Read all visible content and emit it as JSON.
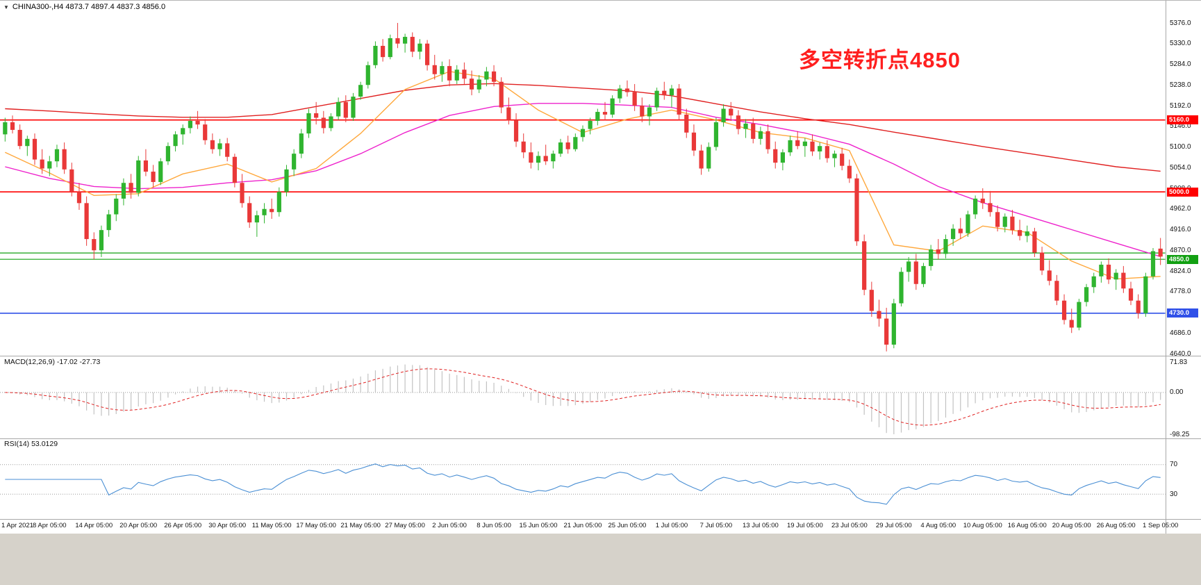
{
  "header": {
    "dropdown_icon": "▼",
    "text": "CHINA300-,H4 4873.7 4897.4 4837.3 4856.0",
    "symbol": "CHINA300-",
    "timeframe": "H4",
    "open": "4873.7",
    "high": "4897.4",
    "low": "4837.3",
    "close": "4856.0"
  },
  "annotation": {
    "text": "多空转折点4850",
    "color": "#ff1f1f"
  },
  "macd_panel": {
    "label_full": "MACD(12,26,9) -17.02 -27.73",
    "name": "MACD(12,26,9)",
    "macd_value": "-17.02",
    "signal_value": "-27.73",
    "axis_labels": [
      "71.83",
      "0.00",
      "-98.25"
    ],
    "histogram_color": "#c2c2c2",
    "signal_color": "#e02020"
  },
  "rsi_panel": {
    "label_full": "RSI(14) 53.0129",
    "name": "RSI(14)",
    "value": "53.0129",
    "axis_labels": [
      "70",
      "30"
    ],
    "line_color": "#4a8fd4"
  },
  "chart_data": {
    "type": "candlestick",
    "title": "CHINA300- H4 chart with MACD and RSI",
    "symbol": "CHINA300-",
    "timeframe": "H4",
    "ylim": [
      4640,
      5376
    ],
    "y_ticks": [
      5376,
      5330,
      5284,
      5238,
      5192,
      5146,
      5100,
      5054,
      5008,
      4962,
      4916,
      4870,
      4824,
      4778,
      4732,
      4686,
      4640
    ],
    "up_color": "#2fb42f",
    "down_color": "#e93838",
    "bars_per_label_interval": 6,
    "x_labels": [
      "1 Apr 2021",
      "8 Apr 05:00",
      "14 Apr 05:00",
      "20 Apr 05:00",
      "26 Apr 05:00",
      "30 Apr 05:00",
      "11 May 05:00",
      "17 May 05:00",
      "21 May 05:00",
      "27 May 05:00",
      "2 Jun 05:00",
      "8 Jun 05:00",
      "15 Jun 05:00",
      "21 Jun 05:00",
      "25 Jun 05:00",
      "1 Jul 05:00",
      "7 Jul 05:00",
      "13 Jul 05:00",
      "19 Jul 05:00",
      "23 Jul 05:00",
      "29 Jul 05:00",
      "4 Aug 05:00",
      "10 Aug 05:00",
      "16 Aug 05:00",
      "20 Aug 05:00",
      "26 Aug 05:00",
      "1 Sep 05:00"
    ],
    "ohlc": [
      [
        5128,
        5165,
        5112,
        5155
      ],
      [
        5155,
        5170,
        5130,
        5138
      ],
      [
        5138,
        5150,
        5095,
        5102
      ],
      [
        5102,
        5125,
        5080,
        5118
      ],
      [
        5118,
        5130,
        5060,
        5072
      ],
      [
        5072,
        5095,
        5040,
        5052
      ],
      [
        5052,
        5080,
        5035,
        5068
      ],
      [
        5068,
        5105,
        5055,
        5095
      ],
      [
        5095,
        5110,
        5040,
        5050
      ],
      [
        5050,
        5065,
        4990,
        5000
      ],
      [
        5000,
        5020,
        4960,
        4975
      ],
      [
        4975,
        4990,
        4880,
        4895
      ],
      [
        4895,
        4910,
        4850,
        4870
      ],
      [
        4870,
        4925,
        4855,
        4915
      ],
      [
        4915,
        4960,
        4900,
        4950
      ],
      [
        4950,
        4995,
        4935,
        4985
      ],
      [
        4985,
        5030,
        4970,
        5020
      ],
      [
        5020,
        5040,
        4985,
        4998
      ],
      [
        4998,
        5080,
        4990,
        5070
      ],
      [
        5070,
        5095,
        5035,
        5045
      ],
      [
        5045,
        5060,
        5010,
        5022
      ],
      [
        5022,
        5075,
        5015,
        5068
      ],
      [
        5068,
        5110,
        5060,
        5102
      ],
      [
        5102,
        5135,
        5090,
        5128
      ],
      [
        5128,
        5150,
        5105,
        5142
      ],
      [
        5142,
        5168,
        5130,
        5158
      ],
      [
        5158,
        5180,
        5140,
        5150
      ],
      [
        5150,
        5162,
        5105,
        5115
      ],
      [
        5115,
        5130,
        5085,
        5095
      ],
      [
        5095,
        5118,
        5080,
        5108
      ],
      [
        5108,
        5120,
        5068,
        5078
      ],
      [
        5078,
        5085,
        5010,
        5020
      ],
      [
        5020,
        5040,
        4965,
        4975
      ],
      [
        4975,
        4990,
        4920,
        4932
      ],
      [
        4932,
        4958,
        4900,
        4948
      ],
      [
        4948,
        4975,
        4930,
        4962
      ],
      [
        4962,
        4985,
        4940,
        4955
      ],
      [
        4955,
        5010,
        4945,
        5000
      ],
      [
        5000,
        5060,
        4990,
        5050
      ],
      [
        5050,
        5095,
        5035,
        5085
      ],
      [
        5085,
        5140,
        5075,
        5130
      ],
      [
        5130,
        5185,
        5120,
        5175
      ],
      [
        5175,
        5200,
        5150,
        5165
      ],
      [
        5165,
        5180,
        5130,
        5142
      ],
      [
        5142,
        5175,
        5135,
        5168
      ],
      [
        5168,
        5210,
        5160,
        5200
      ],
      [
        5200,
        5215,
        5155,
        5165
      ],
      [
        5165,
        5220,
        5158,
        5212
      ],
      [
        5212,
        5245,
        5205,
        5238
      ],
      [
        5238,
        5290,
        5230,
        5282
      ],
      [
        5282,
        5335,
        5275,
        5325
      ],
      [
        5325,
        5340,
        5290,
        5300
      ],
      [
        5300,
        5350,
        5295,
        5342
      ],
      [
        5342,
        5376,
        5320,
        5330
      ],
      [
        5330,
        5352,
        5310,
        5345
      ],
      [
        5345,
        5355,
        5300,
        5312
      ],
      [
        5312,
        5340,
        5295,
        5330
      ],
      [
        5330,
        5338,
        5270,
        5282
      ],
      [
        5282,
        5305,
        5250,
        5262
      ],
      [
        5262,
        5290,
        5245,
        5280
      ],
      [
        5280,
        5295,
        5235,
        5248
      ],
      [
        5248,
        5282,
        5240,
        5272
      ],
      [
        5272,
        5288,
        5240,
        5252
      ],
      [
        5252,
        5270,
        5215,
        5228
      ],
      [
        5228,
        5260,
        5220,
        5250
      ],
      [
        5250,
        5278,
        5235,
        5268
      ],
      [
        5268,
        5282,
        5235,
        5245
      ],
      [
        5245,
        5255,
        5175,
        5188
      ],
      [
        5188,
        5210,
        5150,
        5160
      ],
      [
        5160,
        5175,
        5100,
        5112
      ],
      [
        5112,
        5130,
        5075,
        5088
      ],
      [
        5088,
        5110,
        5052,
        5065
      ],
      [
        5065,
        5090,
        5048,
        5080
      ],
      [
        5080,
        5105,
        5060,
        5068
      ],
      [
        5068,
        5092,
        5052,
        5085
      ],
      [
        5085,
        5118,
        5078,
        5110
      ],
      [
        5110,
        5125,
        5085,
        5095
      ],
      [
        5095,
        5130,
        5090,
        5122
      ],
      [
        5122,
        5148,
        5112,
        5140
      ],
      [
        5140,
        5165,
        5128,
        5158
      ],
      [
        5158,
        5185,
        5148,
        5178
      ],
      [
        5178,
        5200,
        5160,
        5172
      ],
      [
        5172,
        5215,
        5165,
        5208
      ],
      [
        5208,
        5238,
        5198,
        5230
      ],
      [
        5230,
        5248,
        5212,
        5222
      ],
      [
        5222,
        5240,
        5180,
        5192
      ],
      [
        5192,
        5210,
        5155,
        5168
      ],
      [
        5168,
        5195,
        5148,
        5188
      ],
      [
        5188,
        5232,
        5180,
        5225
      ],
      [
        5225,
        5245,
        5205,
        5215
      ],
      [
        5215,
        5238,
        5188,
        5230
      ],
      [
        5230,
        5240,
        5160,
        5172
      ],
      [
        5172,
        5185,
        5120,
        5132
      ],
      [
        5132,
        5150,
        5080,
        5092
      ],
      [
        5092,
        5105,
        5038,
        5052
      ],
      [
        5052,
        5110,
        5045,
        5100
      ],
      [
        5100,
        5165,
        5092,
        5155
      ],
      [
        5155,
        5195,
        5145,
        5185
      ],
      [
        5185,
        5200,
        5158,
        5170
      ],
      [
        5170,
        5182,
        5128,
        5140
      ],
      [
        5140,
        5162,
        5120,
        5152
      ],
      [
        5152,
        5165,
        5108,
        5118
      ],
      [
        5118,
        5145,
        5105,
        5135
      ],
      [
        5135,
        5150,
        5085,
        5095
      ],
      [
        5095,
        5112,
        5052,
        5065
      ],
      [
        5065,
        5095,
        5048,
        5088
      ],
      [
        5088,
        5125,
        5080,
        5115
      ],
      [
        5115,
        5135,
        5095,
        5102
      ],
      [
        5102,
        5120,
        5078,
        5112
      ],
      [
        5112,
        5128,
        5080,
        5090
      ],
      [
        5090,
        5110,
        5072,
        5102
      ],
      [
        5102,
        5115,
        5065,
        5075
      ],
      [
        5075,
        5092,
        5055,
        5085
      ],
      [
        5085,
        5098,
        5048,
        5058
      ],
      [
        5058,
        5072,
        5020,
        5030
      ],
      [
        5030,
        5040,
        4880,
        4890
      ],
      [
        4890,
        4905,
        4770,
        4782
      ],
      [
        4782,
        4800,
        4722,
        4735
      ],
      [
        4735,
        4760,
        4700,
        4718
      ],
      [
        4718,
        4742,
        4645,
        4660
      ],
      [
        4660,
        4762,
        4652,
        4752
      ],
      [
        4752,
        4832,
        4745,
        4822
      ],
      [
        4822,
        4855,
        4800,
        4845
      ],
      [
        4845,
        4862,
        4782,
        4795
      ],
      [
        4795,
        4842,
        4788,
        4835
      ],
      [
        4835,
        4882,
        4825,
        4872
      ],
      [
        4872,
        4895,
        4850,
        4862
      ],
      [
        4862,
        4905,
        4852,
        4895
      ],
      [
        4895,
        4928,
        4880,
        4918
      ],
      [
        4918,
        4942,
        4895,
        4908
      ],
      [
        4908,
        4958,
        4900,
        4950
      ],
      [
        4950,
        4992,
        4940,
        4985
      ],
      [
        4985,
        5008,
        4962,
        4975
      ],
      [
        4975,
        5002,
        4945,
        4955
      ],
      [
        4955,
        4970,
        4912,
        4922
      ],
      [
        4922,
        4952,
        4910,
        4945
      ],
      [
        4945,
        4960,
        4905,
        4915
      ],
      [
        4915,
        4938,
        4892,
        4902
      ],
      [
        4902,
        4925,
        4888,
        4912
      ],
      [
        4912,
        4920,
        4855,
        4865
      ],
      [
        4865,
        4878,
        4815,
        4825
      ],
      [
        4825,
        4848,
        4792,
        4802
      ],
      [
        4802,
        4815,
        4748,
        4758
      ],
      [
        4758,
        4772,
        4705,
        4715
      ],
      [
        4715,
        4740,
        4686,
        4698
      ],
      [
        4698,
        4762,
        4692,
        4755
      ],
      [
        4755,
        4795,
        4745,
        4788
      ],
      [
        4788,
        4820,
        4775,
        4812
      ],
      [
        4812,
        4845,
        4798,
        4838
      ],
      [
        4838,
        4852,
        4795,
        4805
      ],
      [
        4805,
        4828,
        4782,
        4820
      ],
      [
        4820,
        4835,
        4775,
        4785
      ],
      [
        4785,
        4800,
        4748,
        4758
      ],
      [
        4758,
        4772,
        4718,
        4730
      ],
      [
        4730,
        4820,
        4722,
        4812
      ],
      [
        4812,
        4875,
        4805,
        4868
      ],
      [
        4873.7,
        4897.4,
        4837.3,
        4856.0
      ]
    ],
    "moving_averages": [
      {
        "name": "ma-slow-red",
        "color": "#e02020",
        "values_at_labels": [
          5185,
          5180,
          5174,
          5169,
          5166,
          5166,
          5172,
          5190,
          5208,
          5226,
          5238,
          5241,
          5237,
          5231,
          5225,
          5214,
          5196,
          5178,
          5163,
          5150,
          5133,
          5117,
          5101,
          5086,
          5071,
          5056,
          5046
        ]
      },
      {
        "name": "ma-mid-magenta",
        "color": "#ee22cc",
        "values_at_labels": [
          5056,
          5030,
          5012,
          5007,
          5010,
          5020,
          5027,
          5047,
          5085,
          5132,
          5170,
          5190,
          5197,
          5197,
          5193,
          5188,
          5166,
          5150,
          5131,
          5106,
          5062,
          5012,
          4976,
          4946,
          4916,
          4886,
          4856
        ]
      },
      {
        "name": "ma-fast-orange",
        "color": "#ffa83c",
        "values_at_labels": [
          5088,
          5042,
          4992,
          4996,
          5040,
          5062,
          5022,
          5052,
          5130,
          5228,
          5268,
          5252,
          5182,
          5132,
          5162,
          5182,
          5160,
          5132,
          5120,
          5092,
          4882,
          4868,
          4924,
          4910,
          4846,
          4806,
          4812
        ]
      }
    ],
    "horizontal_levels": [
      {
        "price": 5160.0,
        "label": "5160.0",
        "color": "#ff0000",
        "width": 1.6,
        "tag": true
      },
      {
        "price": 5000.0,
        "label": "5000.0",
        "color": "#ff0000",
        "width": 1.6,
        "tag": true
      },
      {
        "price": 4864.0,
        "label": "",
        "color": "#12a012",
        "width": 1.2,
        "tag": false
      },
      {
        "price": 4850.0,
        "label": "4850.0",
        "color": "#12a012",
        "width": 1.2,
        "tag": true
      },
      {
        "price": 4730.0,
        "label": "4730.0",
        "color": "#3050e8",
        "width": 1.6,
        "tag": true
      }
    ],
    "indicators": {
      "macd": {
        "params": [
          12,
          26,
          9
        ],
        "last_macd": -17.02,
        "last_signal": -27.73,
        "axis_range": [
          -98.25,
          71.83
        ]
      },
      "rsi": {
        "period": 14,
        "last": 53.0129,
        "levels": [
          70,
          30
        ],
        "range": [
          0,
          100
        ]
      }
    }
  }
}
